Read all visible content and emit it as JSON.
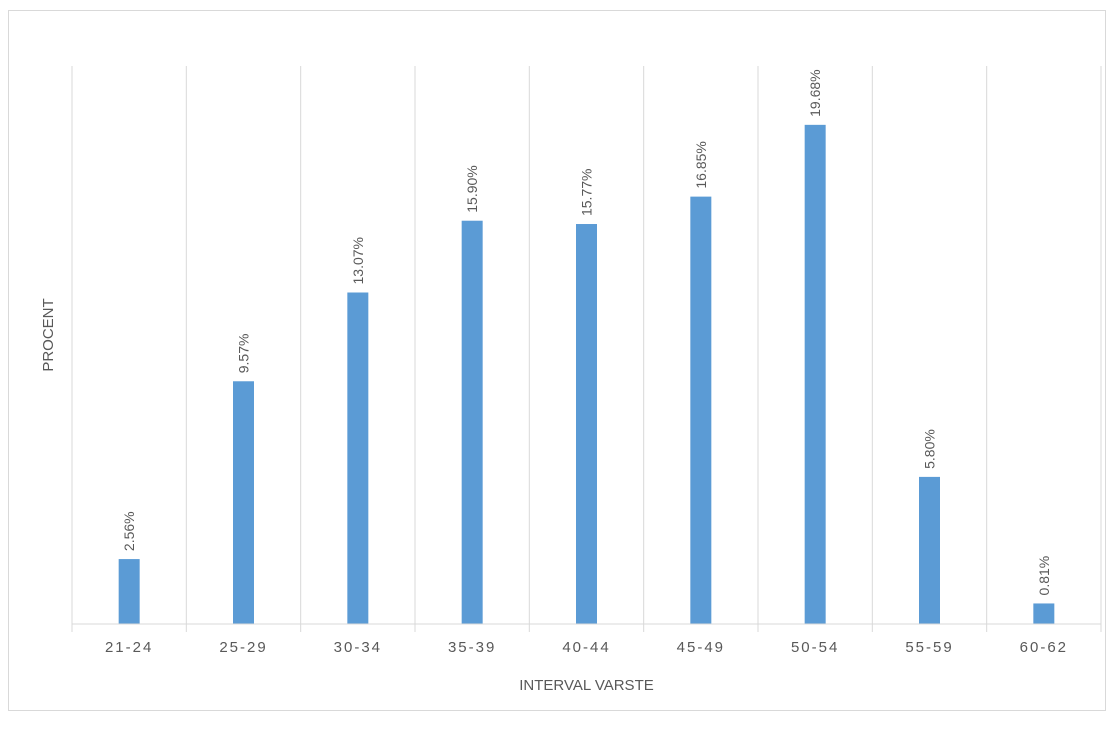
{
  "chart_data": {
    "type": "bar",
    "categories": [
      "21-24",
      "25-29",
      "30-34",
      "35-39",
      "40-44",
      "45-49",
      "50-54",
      "55-59",
      "60-62"
    ],
    "values": [
      2.56,
      9.57,
      13.07,
      15.9,
      15.77,
      16.85,
      19.68,
      5.8,
      0.81
    ],
    "data_labels": [
      "2.56%",
      "9.57%",
      "13.07%",
      "15.90%",
      "15.77%",
      "16.85%",
      "19.68%",
      "5.80%",
      "0.81%"
    ],
    "xlabel": "INTERVAL VARSTE",
    "ylabel": "PROCENT",
    "ylim": [
      0,
      22
    ],
    "grid": "vertical",
    "legend": "none",
    "bar_color": "#5b9bd5",
    "grid_color": "#d9d9d9"
  }
}
